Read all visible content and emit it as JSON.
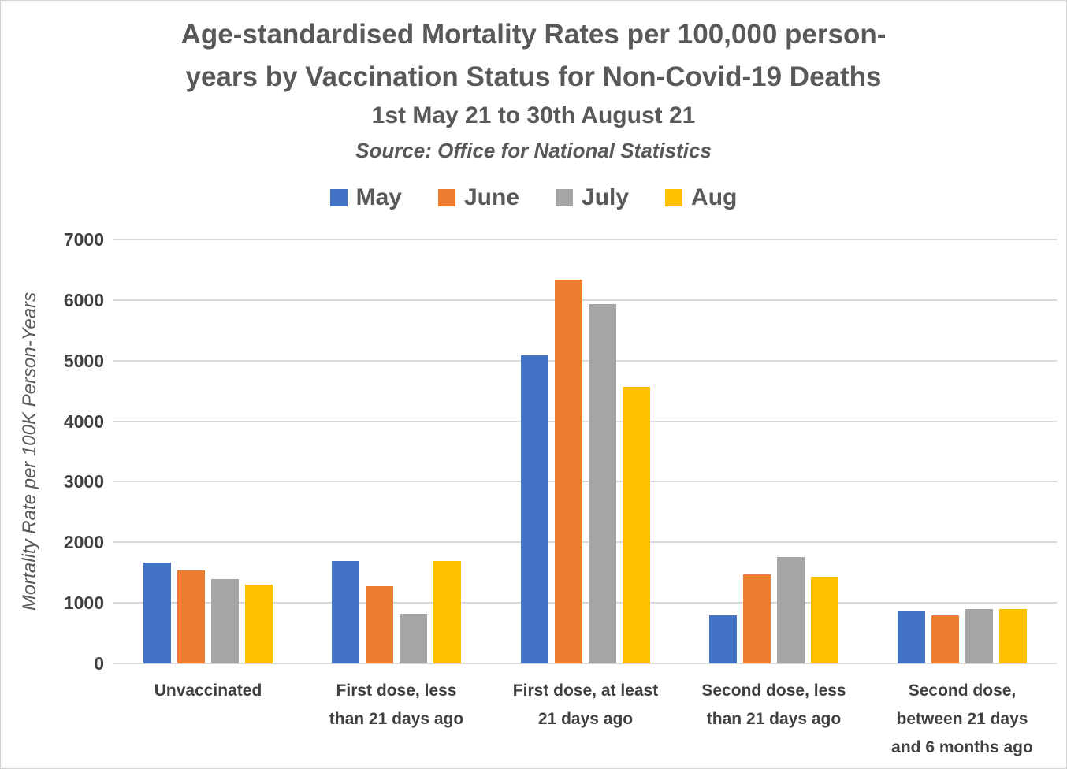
{
  "title": {
    "line1": "Age-standardised Mortality Rates per 100,000 person-",
    "line2": "years by Vaccination Status for Non-Covid-19 Deaths",
    "subtitle": "1st May 21 to 30th August 21",
    "source": "Source: Office for National Statistics"
  },
  "colors": {
    "may": "#4472C4",
    "june": "#ED7D31",
    "july": "#A5A5A5",
    "aug": "#FFC000",
    "gridline": "#D9D9D9",
    "title_text": "#595959",
    "axis_text": "#404040",
    "border": "#D2D2D2"
  },
  "chart_data": {
    "type": "bar",
    "title": "Age-standardised Mortality Rates per 100,000 person-years by Vaccination Status for Non-Covid-19 Deaths",
    "subtitle": "1st May 21 to 30th August 21",
    "source": "Source: Office for National Statistics",
    "xlabel": "",
    "ylabel": "Mortality Rate per 100K Person-Years",
    "ylim": [
      0,
      7000
    ],
    "yticks": [
      0,
      1000,
      2000,
      3000,
      4000,
      5000,
      6000,
      7000
    ],
    "grid": true,
    "legend_position": "top",
    "categories": [
      "Unvaccinated",
      "First dose, less than 21 days ago",
      "First dose, at least 21 days ago",
      "Second dose, less than 21 days ago",
      "Second dose, between 21 days and 6 months ago"
    ],
    "category_lines": [
      [
        "Unvaccinated"
      ],
      [
        "First dose, less",
        "than 21 days ago"
      ],
      [
        "First dose, at least",
        "21 days ago"
      ],
      [
        "Second dose, less",
        "than 21 days ago"
      ],
      [
        "Second dose,",
        "between 21 days",
        "and 6 months ago"
      ]
    ],
    "series": [
      {
        "name": "May",
        "color": "#4472C4",
        "values": [
          1670,
          1690,
          5090,
          800,
          860
        ]
      },
      {
        "name": "June",
        "color": "#ED7D31",
        "values": [
          1530,
          1280,
          6340,
          1470,
          790
        ]
      },
      {
        "name": "July",
        "color": "#A5A5A5",
        "values": [
          1390,
          820,
          5930,
          1750,
          900
        ]
      },
      {
        "name": "Aug",
        "color": "#FFC000",
        "values": [
          1300,
          1690,
          4570,
          1430,
          900
        ]
      }
    ]
  }
}
